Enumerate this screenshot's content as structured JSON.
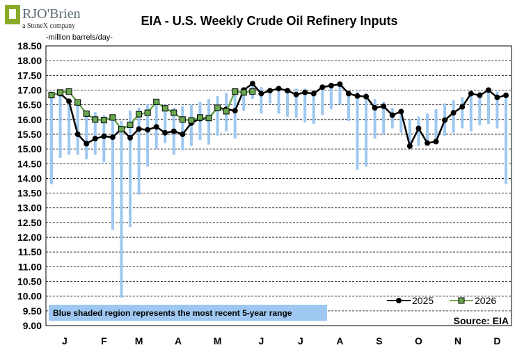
{
  "logo": {
    "name": "RJO'Brien",
    "tagline": "a StoneX company"
  },
  "chart_data": {
    "type": "line",
    "title": "EIA - U.S. Weekly Crude Oil Refinery Inputs",
    "ylabel": "-million barrels/day-",
    "ylim": [
      9.0,
      18.5
    ],
    "ytick_step": 0.5,
    "ytick_labels": [
      "9.00",
      "9.50",
      "10.00",
      "10.50",
      "11.00",
      "11.50",
      "12.00",
      "12.50",
      "13.00",
      "13.50",
      "14.00",
      "14.50",
      "15.00",
      "15.50",
      "16.00",
      "16.50",
      "17.00",
      "17.50",
      "18.00",
      "18.50"
    ],
    "month_labels": [
      "J",
      "F",
      "M",
      "A",
      "M",
      "J",
      "J",
      "A",
      "S",
      "O",
      "N",
      "D"
    ],
    "month_label_weeks": [
      1.5,
      6,
      10,
      14.5,
      19,
      24,
      28.5,
      33,
      37.5,
      42,
      46.5,
      51
    ],
    "weeks_total": 52,
    "grid": "horizontal",
    "legend_position": "bottom-right",
    "range_color": "#9ec8f2",
    "series": [
      {
        "name": "2025",
        "color": "#000000",
        "marker": "circle",
        "values": [
          16.85,
          16.88,
          16.62,
          15.5,
          15.18,
          15.35,
          15.43,
          15.4,
          15.68,
          15.38,
          15.68,
          15.65,
          15.75,
          15.55,
          15.6,
          15.5,
          15.88,
          16.03,
          16.05,
          16.4,
          16.35,
          16.3,
          17.0,
          17.22,
          16.88,
          16.98,
          17.05,
          16.98,
          16.85,
          16.92,
          16.88,
          17.1,
          17.15,
          17.2,
          16.88,
          16.8,
          16.78,
          16.4,
          16.45,
          16.15,
          16.27,
          15.1,
          15.7,
          15.2,
          15.25,
          15.98,
          16.23,
          16.43,
          16.88,
          16.82,
          17.0,
          16.75,
          16.82
        ]
      },
      {
        "name": "2026",
        "color": "#6aa84f",
        "marker": "square",
        "values": [
          16.83,
          16.92,
          16.95,
          16.58,
          16.2,
          16.0,
          15.98,
          16.07,
          15.67,
          15.82,
          16.18,
          16.23,
          16.6,
          16.38,
          16.23,
          16.0,
          15.97,
          16.07,
          16.05,
          16.4,
          16.28,
          16.95,
          16.92,
          16.95
        ]
      }
    ],
    "range": {
      "min": [
        13.8,
        14.7,
        14.8,
        14.8,
        14.65,
        14.8,
        14.55,
        12.25,
        9.95,
        12.35,
        13.45,
        14.4,
        15.0,
        15.2,
        14.8,
        14.95,
        15.1,
        15.3,
        15.15,
        15.45,
        15.6,
        15.35,
        16.3,
        16.7,
        16.2,
        16.55,
        16.2,
        16.1,
        16.05,
        15.9,
        15.85,
        16.15,
        16.35,
        16.5,
        15.95,
        14.3,
        14.4,
        15.35,
        15.5,
        15.7,
        15.55,
        15.05,
        15.1,
        15.25,
        15.3,
        15.45,
        15.55,
        15.7,
        15.6,
        15.8,
        15.85,
        15.7,
        13.8
      ],
      "max": [
        16.95,
        16.95,
        16.7,
        16.6,
        16.3,
        16.25,
        16.15,
        16.15,
        15.95,
        16.3,
        16.4,
        16.5,
        16.6,
        16.5,
        16.4,
        16.45,
        16.5,
        16.6,
        16.7,
        16.8,
        16.9,
        17.05,
        17.1,
        17.2,
        17.1,
        17.0,
        17.1,
        17.05,
        17.05,
        17.05,
        17.0,
        17.15,
        17.25,
        17.25,
        17.0,
        16.95,
        16.9,
        16.7,
        16.6,
        16.4,
        16.3,
        16.0,
        16.1,
        16.2,
        16.35,
        16.55,
        16.65,
        16.75,
        16.9,
        16.95,
        17.0,
        16.95,
        16.85
      ]
    },
    "annotation": "Blue shaded region represents the most recent 5-year range",
    "source": "Source: EIA"
  }
}
